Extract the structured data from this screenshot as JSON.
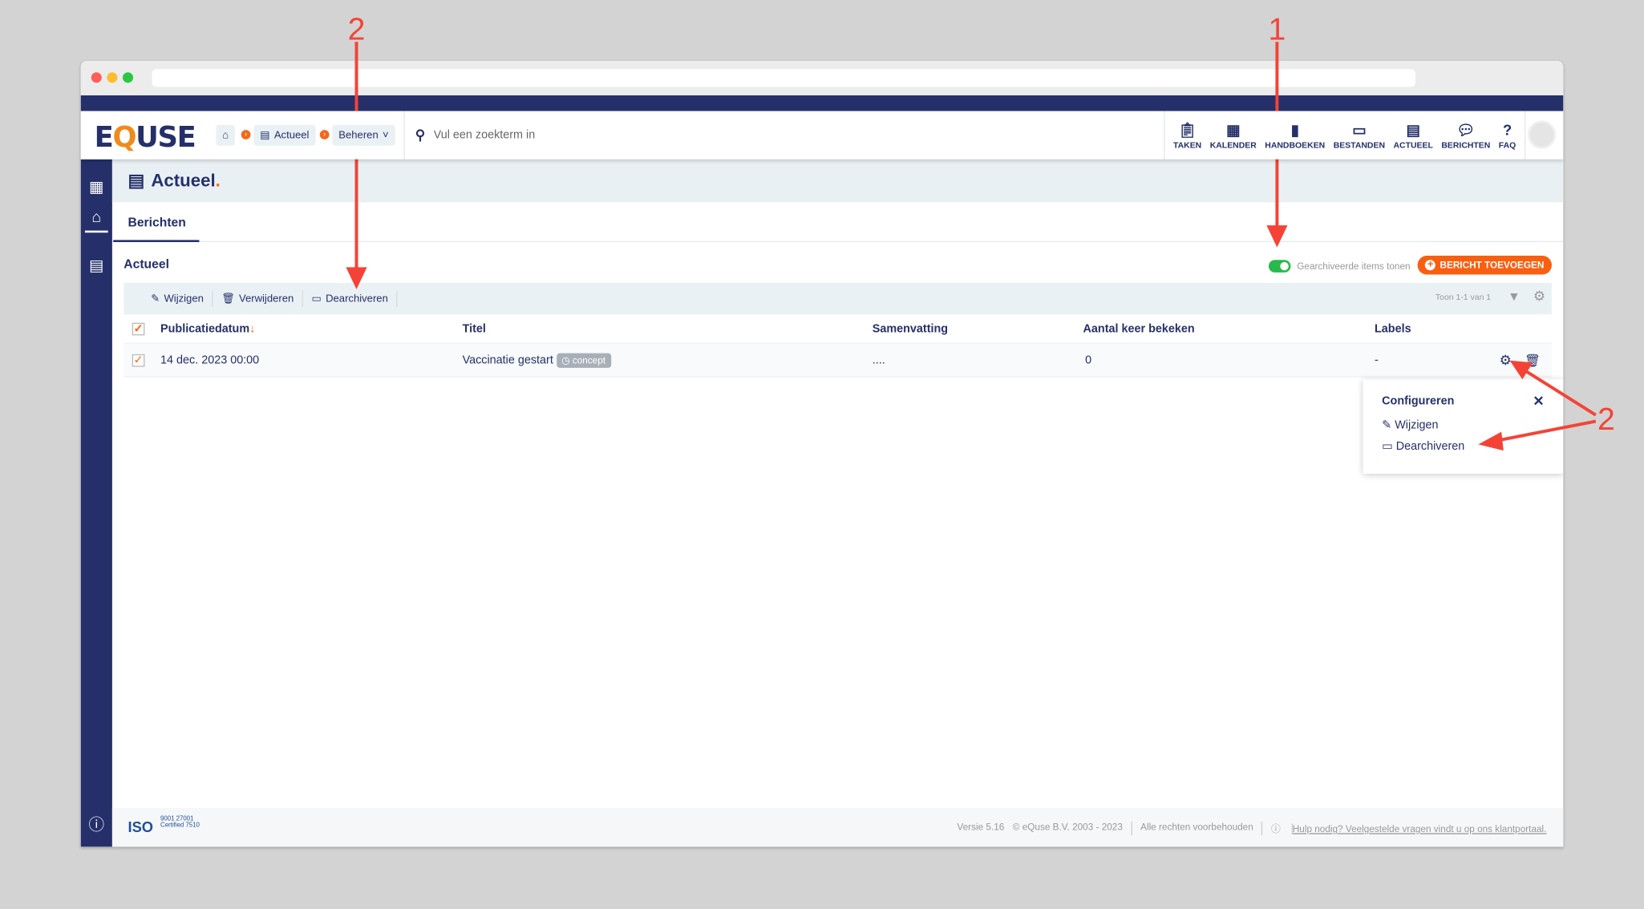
{
  "header": {
    "logo": "EQUSE",
    "breadcrumb": [
      {
        "label": "Actueel"
      },
      {
        "label": "Beheren"
      }
    ],
    "search_placeholder": "Vul een zoekterm in",
    "nav": [
      {
        "label": "TAKEN",
        "icon": "clipboard-icon"
      },
      {
        "label": "KALENDER",
        "icon": "calendar-icon"
      },
      {
        "label": "HANDBOEKEN",
        "icon": "book-icon"
      },
      {
        "label": "BESTANDEN",
        "icon": "archive-icon"
      },
      {
        "label": "ACTUEEL",
        "icon": "newspaper-icon"
      },
      {
        "label": "BERICHTEN",
        "icon": "comments-icon"
      },
      {
        "label": "FAQ",
        "icon": "question-icon"
      }
    ]
  },
  "page": {
    "title": "Actueel",
    "title_dot": ".",
    "tab": "Berichten",
    "section": "Actueel",
    "toggle_label": "Gearchiveerde items tonen",
    "toggle_on": true,
    "add_button": "BERICHT TOEVOEGEN"
  },
  "toolbar": {
    "edit": "Wijzigen",
    "delete": "Verwijderen",
    "unarchive": "Dearchiveren",
    "count": "Toon 1-1 van 1"
  },
  "table": {
    "columns": [
      "Publicatiedatum",
      "Titel",
      "Samenvatting",
      "Aantal keer bekeken",
      "Labels"
    ],
    "sort_indicator": "↓",
    "rows": [
      {
        "date": "14 dec. 2023 00:00",
        "title": "Vaccinatie gestart",
        "badge": "concept",
        "summary": "....",
        "views": "0",
        "labels": "-",
        "checked": true
      }
    ]
  },
  "popup": {
    "title": "Configureren",
    "close": "✕",
    "items": [
      "Wijzigen",
      "Dearchiveren"
    ]
  },
  "footer": {
    "iso": "ISO",
    "iso_lines": "9001 27001 Certified 7510",
    "version": "Versie 5.16",
    "copyright": "© eQuse B.V. 2003 - 2023",
    "rights": "Alle rechten voorbehouden",
    "help": "Hulp nodig? Veelgestelde vragen vindt u op ons klantportaal."
  },
  "annotations": {
    "label_1": "1",
    "label_2": "2",
    "color": "#f44336"
  },
  "colors": {
    "navy": "#25306a",
    "orange": "#f85f10",
    "toggle": "#28b94b"
  }
}
